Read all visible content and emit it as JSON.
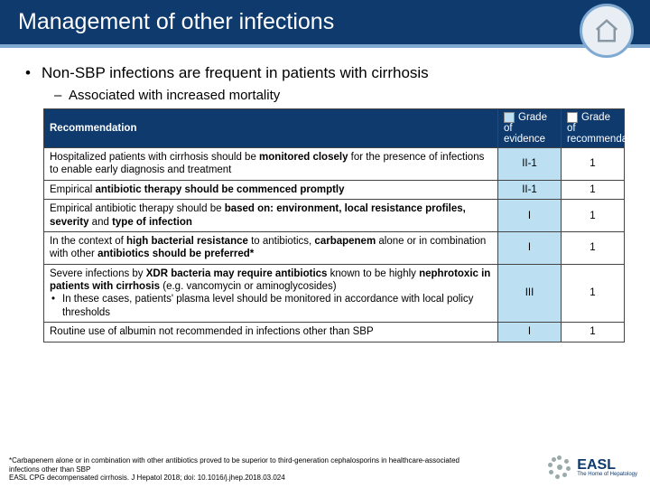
{
  "title": "Management of other infections",
  "bullets": {
    "main": "Non-SBP infections are frequent in patients with cirrhosis",
    "sub": "Associated with increased mortality"
  },
  "table": {
    "header_recommendation": "Recommendation",
    "legend_evidence": "Grade of evidence",
    "legend_recommendation": "Grade of recommendation",
    "col_widths": {
      "recommendation": "auto",
      "evidence": 70,
      "grade": 70
    },
    "colors": {
      "header_bg": "#0e3a6e",
      "header_text": "#ffffff",
      "evidence_bg": "#bcdff2",
      "grade_bg": "#ffffff",
      "border": "#444444"
    },
    "rows": [
      {
        "html": "Hospitalized patients with cirrhosis should be <b>monitored closely</b> for the presence of infections to enable early diagnosis and treatment",
        "evidence": "II-1",
        "grade": "1"
      },
      {
        "html": "Empirical <b>antibiotic therapy should be commenced promptly</b>",
        "evidence": "II-1",
        "grade": "1"
      },
      {
        "html": "Empirical antibiotic therapy should be <b>based on: environment, local resistance profiles, severity</b> and <b>type of infection</b>",
        "evidence": "I",
        "grade": "1"
      },
      {
        "html": "In the context of <b>high bacterial resistance</b> to antibiotics, <b>carbapenem</b> alone or in combination with other <b>antibiotics should be preferred*</b>",
        "evidence": "I",
        "grade": "1"
      },
      {
        "html": "Severe infections by <b>XDR bacteria may require antibiotics</b> known to be highly <b>nephrotoxic in patients with cirrhosis</b> (e.g. vancomycin or aminoglycosides)<span class=\"sub-bullet\">In these cases, patients' plasma level should be monitored in accordance with local policy thresholds</span>",
        "evidence": "III",
        "grade": "1"
      },
      {
        "html": "Routine use of albumin not recommended in infections other than SBP",
        "evidence": "I",
        "grade": "1"
      }
    ]
  },
  "footnote": {
    "line1": "*Carbapenem alone or in combination with other antibiotics proved to be superior to third-generation cephalosporins in healthcare-associated infections other than SBP",
    "line2": "EASL CPG decompensated cirrhosis. J Hepatol 2018; doi: 10.1016/j.jhep.2018.03.024"
  },
  "logo": {
    "text": "EASL",
    "sub": "The Home of Hepatology"
  }
}
